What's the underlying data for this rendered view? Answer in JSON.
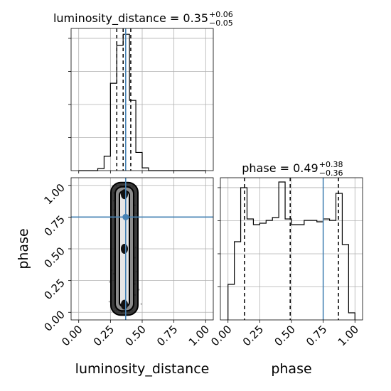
{
  "chart_data": {
    "type": "corner",
    "parameters": [
      "luminosity_distance",
      "phase"
    ],
    "truths": {
      "luminosity_distance": 0.37,
      "phase": 0.75
    },
    "titles": {
      "luminosity_distance": {
        "name": "luminosity_distance",
        "median": "0.35",
        "plus": "+0.06",
        "minus": "−0.05"
      },
      "phase": {
        "name": "phase",
        "median": "0.49",
        "plus": "+0.38",
        "minus": "−0.36"
      }
    },
    "xlabels": [
      "luminosity_distance",
      "phase"
    ],
    "ylabel": "phase",
    "ticks": {
      "values": [
        0.0,
        0.25,
        0.5,
        0.75,
        1.0
      ],
      "labels": [
        "0.00",
        "0.25",
        "0.50",
        "0.75",
        "1.00"
      ]
    },
    "axis_range": {
      "luminosity_distance": [
        -0.06,
        1.06
      ],
      "phase": [
        -0.06,
        1.06
      ]
    },
    "histograms": {
      "luminosity_distance": {
        "bin_edges": [
          0.0,
          0.05,
          0.1,
          0.15,
          0.2,
          0.25,
          0.3,
          0.35,
          0.4,
          0.45,
          0.5,
          0.55,
          0.6,
          0.65,
          0.7,
          0.75,
          0.8,
          0.85,
          0.9,
          0.95,
          1.0
        ],
        "counts": [
          0,
          0,
          0,
          0.6,
          4.2,
          25.5,
          36.6,
          39.8,
          20.5,
          5.3,
          0.8,
          0,
          0,
          0,
          0,
          0,
          0,
          0,
          0,
          0
        ],
        "quantiles": [
          0.3,
          0.35,
          0.41
        ]
      },
      "phase": {
        "bin_edges": [
          0.0,
          0.05,
          0.1,
          0.15,
          0.2,
          0.25,
          0.3,
          0.35,
          0.4,
          0.45,
          0.5,
          0.55,
          0.6,
          0.65,
          0.7,
          0.75,
          0.8,
          0.85,
          0.9,
          0.95,
          1.0
        ],
        "counts": [
          25,
          55,
          93,
          71,
          67,
          68,
          70,
          72,
          97,
          71,
          67,
          67,
          70,
          70,
          69,
          71,
          70,
          89,
          53,
          5
        ],
        "quantiles": [
          0.13,
          0.49,
          0.87
        ]
      }
    },
    "y_hist_max": {
      "luminosity_distance": 41.5,
      "phase": 100
    },
    "y_ticks_count": {
      "luminosity_distance": 4,
      "phase": 4
    },
    "grid": true,
    "scatter_density": {
      "x_center": 0.36,
      "x_spread": 0.035,
      "y_range": [
        0.0,
        1.0
      ]
    }
  }
}
